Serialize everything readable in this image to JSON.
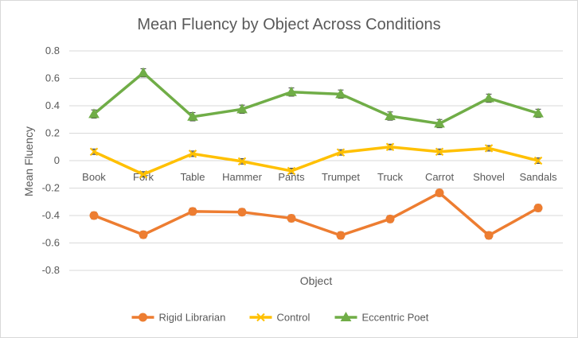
{
  "chart_data": {
    "type": "line",
    "title": "Mean Fluency by Object Across Conditions",
    "xlabel": "Object",
    "ylabel": "Mean Fluency",
    "ylim": [
      -0.8,
      0.8
    ],
    "yticks": [
      "0.8",
      "0.6",
      "0.4",
      "0.2",
      "0",
      "-0.2",
      "-0.4",
      "-0.6",
      "-0.8"
    ],
    "grid": true,
    "legend_position": "bottom",
    "categories": [
      "Book",
      "Fork",
      "Table",
      "Hammer",
      "Pants",
      "Trumpet",
      "Truck",
      "Carrot",
      "Shovel",
      "Sandals"
    ],
    "series": [
      {
        "name": "Rigid Librarian",
        "color": "#ed7d31",
        "marker": "circle",
        "values": [
          -0.4,
          -0.54,
          -0.37,
          -0.375,
          -0.42,
          -0.545,
          -0.425,
          -0.235,
          -0.545,
          -0.345
        ],
        "errors": [
          0.025,
          0.025,
          0.025,
          0.025,
          0.025,
          0.025,
          0.025,
          0.025,
          0.025,
          0.025
        ]
      },
      {
        "name": "Control",
        "color": "#ffc000",
        "marker": "x",
        "values": [
          0.065,
          -0.1,
          0.05,
          -0.005,
          -0.075,
          0.06,
          0.1,
          0.065,
          0.09,
          0.0
        ],
        "errors": [
          0.02,
          0.02,
          0.02,
          0.02,
          0.02,
          0.02,
          0.02,
          0.02,
          0.02,
          0.02
        ]
      },
      {
        "name": "Eccentric Poet",
        "color": "#70ad47",
        "marker": "triangle",
        "values": [
          0.34,
          0.64,
          0.32,
          0.375,
          0.5,
          0.485,
          0.325,
          0.27,
          0.455,
          0.345
        ],
        "errors": [
          0.03,
          0.03,
          0.03,
          0.03,
          0.03,
          0.03,
          0.03,
          0.03,
          0.03,
          0.03
        ]
      }
    ]
  }
}
